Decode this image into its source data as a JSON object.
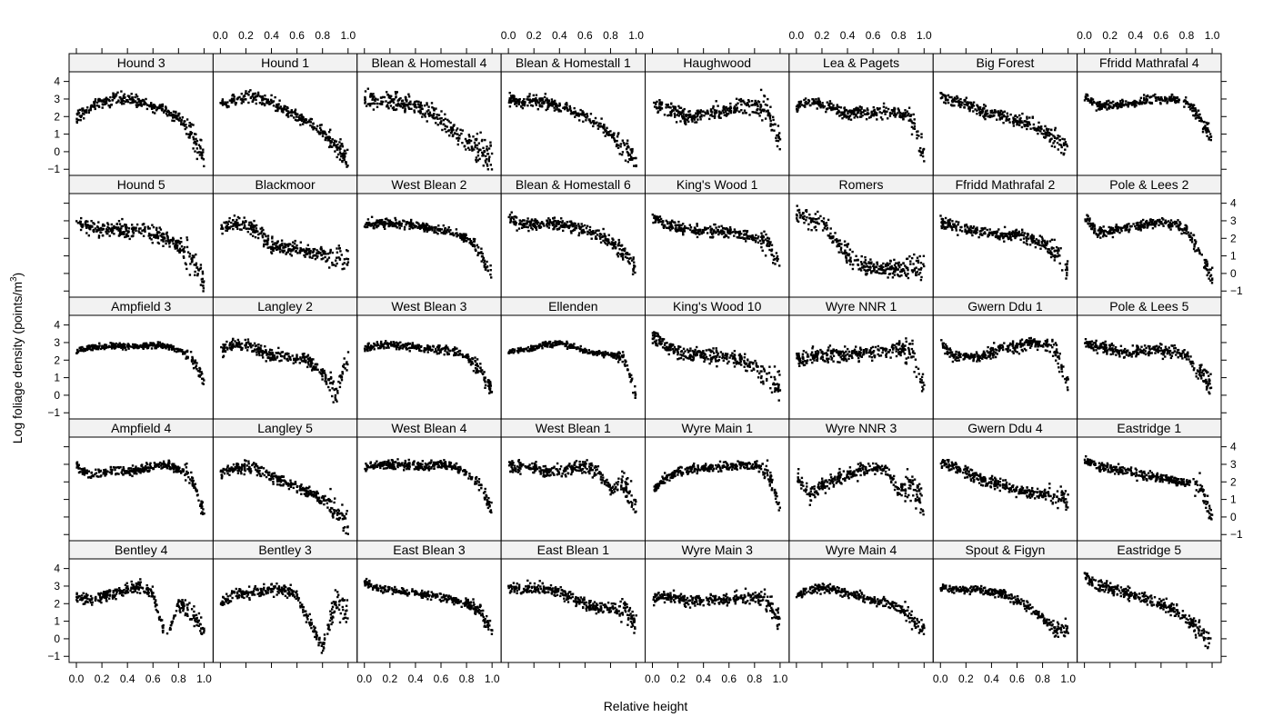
{
  "chart_data": {
    "type": "scatter",
    "layout": "lattice 8 columns x 5 rows",
    "xlabel": "Relative height",
    "ylabel": "Log foliage density (points/m",
    "ylabel_sup": "3",
    "ylabel_end": ")",
    "xlim": [
      -0.057,
      1.071
    ],
    "ylim": [
      -1.35,
      4.55
    ],
    "x_ticks": [
      "0.0",
      "0.2",
      "0.4",
      "0.6",
      "0.8",
      "1.0"
    ],
    "y_ticks": [
      "−1",
      "0",
      "1",
      "2",
      "3",
      "4"
    ],
    "profile_x": [
      0,
      0.1,
      0.2,
      0.3,
      0.4,
      0.5,
      0.6,
      0.7,
      0.8,
      0.9,
      1.0
    ],
    "note": "approximate mean profile per panel; points scattered around it with given spread",
    "panels": [
      {
        "name": "Hound 3",
        "profile": [
          2.0,
          2.5,
          2.8,
          3.0,
          3.0,
          2.8,
          2.6,
          2.4,
          2.0,
          1.2,
          -0.5
        ],
        "spread": 0.4
      },
      {
        "name": "Hound 1",
        "profile": [
          2.7,
          2.9,
          3.1,
          3.1,
          2.8,
          2.4,
          2.0,
          1.6,
          1.1,
          0.5,
          -0.5
        ],
        "spread": 0.4
      },
      {
        "name": "Blean & Homestall 4",
        "profile": [
          3.0,
          2.9,
          2.9,
          2.8,
          2.6,
          2.3,
          1.8,
          1.2,
          0.6,
          0.2,
          -0.5
        ],
        "spread": 0.6
      },
      {
        "name": "Blean & Homestall 1",
        "profile": [
          3.0,
          2.8,
          2.9,
          2.8,
          2.6,
          2.3,
          2.0,
          1.6,
          1.0,
          0.3,
          -0.5
        ],
        "spread": 0.4
      },
      {
        "name": "Haughwood",
        "profile": [
          2.6,
          2.5,
          2.2,
          2.0,
          2.2,
          2.3,
          2.4,
          2.6,
          2.6,
          2.4,
          0.5
        ],
        "spread": 0.5
      },
      {
        "name": "Lea & Pagets",
        "profile": [
          2.6,
          2.9,
          2.7,
          2.4,
          2.2,
          2.2,
          2.2,
          2.3,
          2.2,
          1.9,
          -0.2
        ],
        "spread": 0.4
      },
      {
        "name": "Big Forest",
        "profile": [
          3.2,
          2.8,
          2.8,
          2.4,
          2.2,
          2.0,
          1.8,
          1.6,
          1.2,
          0.8,
          0.2
        ],
        "spread": 0.4
      },
      {
        "name": "Ffridd Mathrafal 4",
        "profile": [
          3.2,
          2.6,
          2.6,
          2.7,
          2.8,
          3.0,
          3.0,
          3.0,
          2.8,
          2.0,
          0.8
        ],
        "spread": 0.3
      },
      {
        "name": "Hound 5",
        "profile": [
          3.0,
          2.6,
          2.5,
          2.6,
          2.4,
          2.6,
          2.3,
          2.0,
          1.6,
          0.8,
          -0.5
        ],
        "spread": 0.5
      },
      {
        "name": "Blackmoor",
        "profile": [
          2.6,
          2.9,
          2.8,
          2.3,
          1.6,
          1.5,
          1.4,
          1.2,
          1.1,
          1.0,
          0.8
        ],
        "spread": 0.5
      },
      {
        "name": "West Blean 2",
        "profile": [
          2.8,
          2.9,
          2.9,
          2.8,
          2.8,
          2.6,
          2.5,
          2.3,
          2.0,
          1.3,
          -0.3
        ],
        "spread": 0.3
      },
      {
        "name": "Blean & Homestall 6",
        "profile": [
          3.2,
          2.7,
          2.8,
          2.9,
          2.8,
          2.7,
          2.5,
          2.2,
          1.8,
          1.2,
          0.3
        ],
        "spread": 0.4
      },
      {
        "name": "King's Wood 1",
        "profile": [
          3.2,
          2.8,
          2.6,
          2.5,
          2.5,
          2.4,
          2.4,
          2.2,
          2.0,
          1.8,
          0.2
        ],
        "spread": 0.4
      },
      {
        "name": "Romers",
        "profile": [
          3.5,
          3.1,
          2.9,
          2.0,
          1.0,
          0.5,
          0.3,
          0.4,
          0.3,
          0.3,
          0.2
        ],
        "spread": 0.6
      },
      {
        "name": "Ffridd Mathrafal 2",
        "profile": [
          3.0,
          2.7,
          2.5,
          2.4,
          2.3,
          2.2,
          2.2,
          2.0,
          1.7,
          1.2,
          0.2
        ],
        "spread": 0.4
      },
      {
        "name": "Pole & Lees 2",
        "profile": [
          3.3,
          2.3,
          2.4,
          2.6,
          2.7,
          2.9,
          2.9,
          2.8,
          2.5,
          1.2,
          -0.3
        ],
        "spread": 0.35
      },
      {
        "name": "Ampfield 3",
        "profile": [
          2.5,
          2.7,
          2.8,
          2.8,
          2.8,
          2.8,
          2.9,
          2.8,
          2.6,
          2.2,
          0.8
        ],
        "spread": 0.2
      },
      {
        "name": "Langley 2",
        "profile": [
          2.5,
          2.9,
          2.9,
          2.6,
          2.3,
          2.2,
          2.1,
          2.0,
          1.2,
          0.2,
          2.0
        ],
        "spread": 0.4
      },
      {
        "name": "West Blean 3",
        "profile": [
          2.6,
          2.9,
          2.9,
          2.8,
          2.8,
          2.7,
          2.6,
          2.5,
          2.2,
          1.5,
          0.3
        ],
        "spread": 0.3
      },
      {
        "name": "Ellenden",
        "profile": [
          2.5,
          2.6,
          2.7,
          2.9,
          3.0,
          2.8,
          2.5,
          2.4,
          2.3,
          2.2,
          0.0
        ],
        "spread": 0.2
      },
      {
        "name": "King's Wood 10",
        "profile": [
          3.3,
          2.8,
          2.5,
          2.4,
          2.3,
          2.2,
          2.2,
          2.0,
          1.6,
          1.0,
          0.5
        ],
        "spread": 0.5
      },
      {
        "name": "Wyre NNR 1",
        "profile": [
          2.0,
          2.2,
          2.3,
          2.4,
          2.3,
          2.4,
          2.4,
          2.5,
          2.6,
          2.4,
          0.5
        ],
        "spread": 0.5
      },
      {
        "name": "Gwern Ddu 1",
        "profile": [
          3.0,
          2.2,
          2.3,
          2.2,
          2.5,
          2.7,
          2.8,
          3.0,
          2.9,
          2.6,
          0.5
        ],
        "spread": 0.4
      },
      {
        "name": "Pole & Lees 5",
        "profile": [
          3.0,
          2.8,
          2.7,
          2.4,
          2.5,
          2.6,
          2.6,
          2.5,
          2.3,
          1.5,
          0.5
        ],
        "spread": 0.4
      },
      {
        "name": "Ampfield 4",
        "profile": [
          3.0,
          2.4,
          2.5,
          2.6,
          2.6,
          2.7,
          2.9,
          3.0,
          2.8,
          2.2,
          0.2
        ],
        "spread": 0.3
      },
      {
        "name": "Langley 5",
        "profile": [
          2.5,
          2.8,
          2.9,
          2.7,
          2.3,
          2.0,
          1.7,
          1.4,
          1.0,
          0.5,
          -0.5
        ],
        "spread": 0.4
      },
      {
        "name": "West Blean 4",
        "profile": [
          2.8,
          3.0,
          3.0,
          3.0,
          2.9,
          2.9,
          3.0,
          2.9,
          2.5,
          1.8,
          0.5
        ],
        "spread": 0.3
      },
      {
        "name": "West Blean 1",
        "profile": [
          3.0,
          2.8,
          2.8,
          2.6,
          2.6,
          2.8,
          2.9,
          2.6,
          1.5,
          2.0,
          0.5
        ],
        "spread": 0.4
      },
      {
        "name": "Wyre Main 1",
        "profile": [
          1.5,
          2.2,
          2.6,
          2.7,
          2.8,
          2.8,
          2.9,
          3.0,
          3.0,
          2.6,
          0.5
        ],
        "spread": 0.3
      },
      {
        "name": "Wyre NNR 3",
        "profile": [
          2.5,
          1.2,
          1.8,
          2.2,
          2.4,
          2.7,
          2.8,
          2.8,
          1.5,
          2.0,
          0.5
        ],
        "spread": 0.5
      },
      {
        "name": "Gwern Ddu 4",
        "profile": [
          3.1,
          2.9,
          2.6,
          2.2,
          2.0,
          1.8,
          1.5,
          1.4,
          1.3,
          1.2,
          0.8
        ],
        "spread": 0.4
      },
      {
        "name": "Eastridge 1",
        "profile": [
          3.2,
          2.9,
          2.8,
          2.6,
          2.5,
          2.3,
          2.3,
          2.1,
          2.0,
          1.8,
          0.0
        ],
        "spread": 0.3
      },
      {
        "name": "Bentley 4",
        "profile": [
          2.4,
          2.2,
          2.4,
          2.6,
          2.9,
          3.0,
          2.5,
          0.0,
          2.0,
          1.5,
          0.5
        ],
        "spread": 0.4
      },
      {
        "name": "Bentley 3",
        "profile": [
          2.0,
          2.5,
          2.6,
          2.7,
          2.8,
          2.8,
          2.5,
          1.0,
          -0.5,
          2.2,
          1.5
        ],
        "spread": 0.4
      },
      {
        "name": "East Blean 3",
        "profile": [
          3.2,
          2.9,
          2.8,
          2.7,
          2.6,
          2.5,
          2.4,
          2.2,
          2.0,
          1.6,
          0.5
        ],
        "spread": 0.25
      },
      {
        "name": "East Blean 1",
        "profile": [
          3.0,
          2.9,
          2.9,
          2.8,
          2.7,
          2.3,
          2.0,
          1.8,
          1.7,
          1.8,
          0.8
        ],
        "spread": 0.4
      },
      {
        "name": "Wyre Main 3",
        "profile": [
          2.3,
          2.4,
          2.3,
          2.2,
          2.2,
          2.3,
          2.3,
          2.4,
          2.4,
          2.2,
          1.0
        ],
        "spread": 0.4
      },
      {
        "name": "Wyre Main 4",
        "profile": [
          2.4,
          2.8,
          2.9,
          2.8,
          2.6,
          2.4,
          2.2,
          2.0,
          1.8,
          1.2,
          0.5
        ],
        "spread": 0.3
      },
      {
        "name": "Spout & Figyn",
        "profile": [
          3.0,
          2.8,
          2.8,
          2.8,
          2.7,
          2.5,
          2.2,
          1.8,
          1.2,
          0.5,
          0.6
        ],
        "spread": 0.3
      },
      {
        "name": "Eastridge 5",
        "profile": [
          3.6,
          3.0,
          2.9,
          2.7,
          2.5,
          2.3,
          2.0,
          1.6,
          1.1,
          0.5,
          -0.2
        ],
        "spread": 0.4
      }
    ]
  }
}
